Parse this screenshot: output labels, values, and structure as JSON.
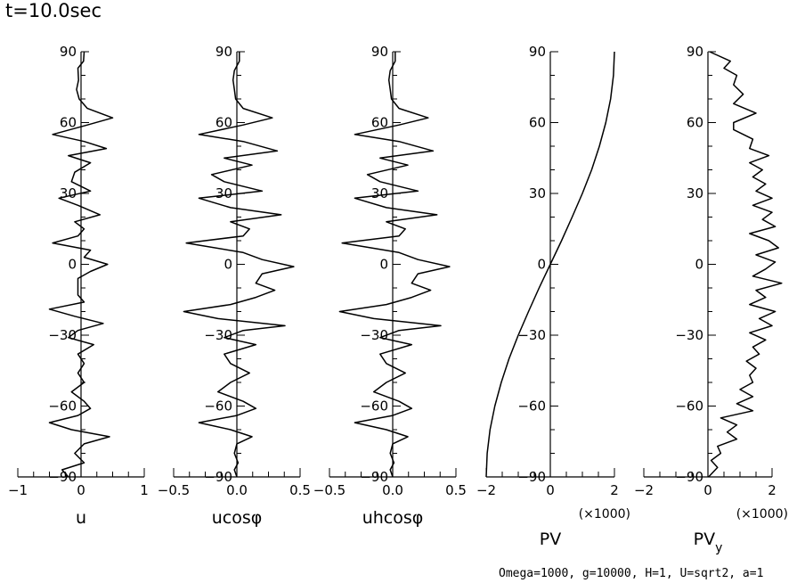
{
  "header": {
    "title": "t=10.0sec"
  },
  "footer": {
    "params": "Omega=1000, g=10000, H=1, U=sqrt2, a=1"
  },
  "chart_data": [
    {
      "type": "line",
      "xlabel": "u",
      "ylim": [
        -90,
        90
      ],
      "xlim": [
        -1,
        1
      ],
      "xticks": [
        -1,
        0,
        1
      ],
      "xtick_labels": [
        "−1",
        "0",
        "1"
      ],
      "yticks": [
        -90,
        -60,
        -30,
        0,
        30,
        60,
        90
      ],
      "ytick_labels": [
        "−90",
        "−60",
        "−30",
        "0",
        "30",
        "60",
        "90"
      ],
      "series": [
        {
          "name": "u",
          "y": [
            90,
            86,
            83,
            78,
            74,
            70,
            66,
            62,
            59,
            55,
            52,
            49,
            46,
            43,
            39,
            35,
            31,
            28,
            25,
            21,
            18,
            15,
            12,
            9,
            6,
            3,
            0,
            -3,
            -6,
            -9,
            -13,
            -16,
            -19,
            -22,
            -25,
            -28,
            -31,
            -34,
            -38,
            -42,
            -46,
            -50,
            -54,
            -58,
            -61,
            -64,
            -67,
            -70,
            -73,
            -76,
            -80,
            -84,
            -87,
            -90
          ],
          "x": [
            0.05,
            0.04,
            -0.05,
            -0.04,
            -0.07,
            -0.03,
            0.1,
            0.5,
            0.1,
            -0.45,
            0.05,
            0.4,
            -0.2,
            0.15,
            -0.1,
            -0.15,
            0.15,
            -0.35,
            -0.05,
            0.3,
            -0.1,
            0.05,
            -0.05,
            -0.45,
            0.15,
            0.05,
            0.42,
            0.15,
            -0.05,
            -0.05,
            -0.05,
            0.05,
            -0.5,
            -0.1,
            0.35,
            -0.05,
            -0.2,
            0.2,
            -0.05,
            0.05,
            -0.05,
            0.05,
            -0.15,
            0.05,
            0.15,
            -0.05,
            -0.5,
            -0.15,
            0.45,
            0.05,
            -0.1,
            0.05,
            -0.3,
            -0.2
          ]
        }
      ]
    },
    {
      "type": "line",
      "xlabel": "ucosφ",
      "ylim": [
        -90,
        90
      ],
      "xlim": [
        -0.5,
        0.5
      ],
      "xticks": [
        -0.5,
        0.0,
        0.5
      ],
      "xtick_labels": [
        "−0.5",
        "0.0",
        "0.5"
      ],
      "yticks": [
        -90,
        -60,
        -30,
        0,
        30,
        60,
        90
      ],
      "ytick_labels": [
        "−90",
        "−60",
        "−30",
        "0",
        "30",
        "60",
        "90"
      ],
      "series": [
        {
          "name": "ucosφ",
          "y": [
            90,
            86,
            82,
            78,
            74,
            70,
            66,
            62,
            59,
            55,
            52,
            48,
            45,
            42,
            38,
            35,
            31,
            28,
            24,
            21,
            18,
            15,
            12,
            9,
            5,
            2,
            -1,
            -4,
            -8,
            -11,
            -14,
            -17,
            -20,
            -23,
            -26,
            -28,
            -31,
            -34,
            -38,
            -42,
            -46,
            -50,
            -54,
            -58,
            -61,
            -64,
            -67,
            -70,
            -73,
            -76,
            -80,
            -84,
            -87,
            -90
          ],
          "x": [
            0.02,
            0.02,
            -0.02,
            -0.03,
            -0.02,
            -0.01,
            0.05,
            0.28,
            0.05,
            -0.3,
            0.05,
            0.32,
            -0.1,
            0.12,
            -0.2,
            -0.1,
            0.2,
            -0.3,
            -0.05,
            0.35,
            -0.05,
            0.1,
            0.05,
            -0.4,
            0.05,
            0.2,
            0.45,
            0.2,
            0.15,
            0.3,
            0.15,
            -0.05,
            -0.42,
            -0.15,
            0.38,
            0.05,
            -0.1,
            0.15,
            -0.1,
            -0.05,
            0.1,
            -0.05,
            -0.15,
            0.05,
            0.15,
            0.0,
            -0.3,
            -0.05,
            0.12,
            0.0,
            -0.02,
            0.01,
            -0.02,
            0.0
          ]
        }
      ]
    },
    {
      "type": "line",
      "xlabel": "uhcosφ",
      "ylim": [
        -90,
        90
      ],
      "xlim": [
        -0.5,
        0.5
      ],
      "xticks": [
        -0.5,
        0.0,
        0.5
      ],
      "xtick_labels": [
        "−0.5",
        "0.0",
        "0.5"
      ],
      "yticks": [
        -90,
        -60,
        -30,
        0,
        30,
        60,
        90
      ],
      "ytick_labels": [
        "−90",
        "−60",
        "−30",
        "0",
        "30",
        "60",
        "90"
      ],
      "series": [
        {
          "name": "uhcosφ",
          "y": [
            90,
            86,
            82,
            78,
            74,
            70,
            66,
            62,
            59,
            55,
            52,
            48,
            45,
            42,
            38,
            35,
            31,
            28,
            24,
            21,
            18,
            15,
            12,
            9,
            5,
            2,
            -1,
            -4,
            -8,
            -11,
            -14,
            -17,
            -20,
            -23,
            -26,
            -28,
            -31,
            -34,
            -38,
            -42,
            -46,
            -50,
            -54,
            -58,
            -61,
            -64,
            -67,
            -70,
            -73,
            -76,
            -80,
            -84,
            -87,
            -90
          ],
          "x": [
            0.02,
            0.02,
            -0.02,
            -0.03,
            -0.02,
            -0.01,
            0.05,
            0.28,
            0.05,
            -0.3,
            0.05,
            0.32,
            -0.1,
            0.12,
            -0.2,
            -0.1,
            0.2,
            -0.3,
            -0.05,
            0.35,
            -0.05,
            0.1,
            0.05,
            -0.4,
            0.05,
            0.2,
            0.45,
            0.2,
            0.15,
            0.3,
            0.15,
            -0.05,
            -0.42,
            -0.15,
            0.38,
            0.05,
            -0.1,
            0.15,
            -0.1,
            -0.05,
            0.1,
            -0.05,
            -0.15,
            0.05,
            0.15,
            0.0,
            -0.3,
            -0.05,
            0.12,
            0.0,
            -0.02,
            0.01,
            -0.02,
            0.0
          ]
        }
      ]
    },
    {
      "type": "line",
      "xlabel": "PV",
      "xscale_label": "(×1000)",
      "ylim": [
        -90,
        90
      ],
      "xlim": [
        -2,
        2
      ],
      "xticks": [
        -2,
        0,
        2
      ],
      "xtick_labels": [
        "−2",
        "0",
        "2"
      ],
      "yticks": [
        -90,
        -60,
        -30,
        0,
        30,
        60,
        90
      ],
      "ytick_labels": [
        "−90",
        "−60",
        "−30",
        "0",
        "30",
        "60",
        "90"
      ],
      "series": [
        {
          "name": "PV",
          "y": [
            -90,
            -80,
            -70,
            -60,
            -50,
            -40,
            -30,
            -20,
            -10,
            0,
            10,
            20,
            30,
            40,
            50,
            60,
            70,
            80,
            90
          ],
          "x": [
            -2.0,
            -1.97,
            -1.88,
            -1.73,
            -1.53,
            -1.29,
            -1.0,
            -0.68,
            -0.35,
            0.0,
            0.35,
            0.68,
            1.0,
            1.29,
            1.53,
            1.73,
            1.88,
            1.97,
            2.0
          ]
        }
      ]
    },
    {
      "type": "line",
      "xlabel": "PV",
      "xlabel_sub": "y",
      "xscale_label": "(×1000)",
      "ylim": [
        -90,
        90
      ],
      "xlim": [
        -2,
        2
      ],
      "xticks": [
        -2,
        0,
        2
      ],
      "xtick_labels": [
        "−2",
        "0",
        "2"
      ],
      "yticks": [
        -90,
        -60,
        -30,
        0,
        30,
        60,
        90
      ],
      "ytick_labels": [
        "−90",
        "−60",
        "−30",
        "0",
        "30",
        "60",
        "90"
      ],
      "series": [
        {
          "name": "PVy",
          "y": [
            90,
            86,
            83,
            80,
            76,
            72,
            68,
            64,
            60,
            57,
            53,
            49,
            46,
            43,
            40,
            37,
            34,
            31,
            28,
            25,
            22,
            19,
            16,
            13,
            10,
            7,
            4,
            1,
            -2,
            -5,
            -8,
            -11,
            -14,
            -17,
            -20,
            -23,
            -26,
            -29,
            -32,
            -35,
            -38,
            -41,
            -44,
            -47,
            -50,
            -53,
            -56,
            -59,
            -62,
            -65,
            -68,
            -71,
            -74,
            -77,
            -80,
            -83,
            -86,
            -90
          ],
          "x": [
            0.05,
            0.7,
            0.5,
            0.9,
            0.8,
            1.1,
            0.8,
            1.5,
            0.8,
            0.8,
            1.4,
            1.3,
            1.9,
            1.3,
            1.7,
            1.4,
            1.8,
            1.5,
            2.0,
            1.4,
            2.0,
            1.7,
            2.1,
            1.3,
            1.9,
            2.2,
            1.5,
            2.1,
            1.8,
            1.4,
            2.3,
            1.5,
            1.8,
            1.3,
            2.1,
            1.6,
            2.0,
            1.3,
            1.8,
            1.4,
            1.6,
            1.2,
            1.5,
            1.3,
            1.4,
            1.0,
            1.4,
            0.9,
            1.4,
            0.4,
            0.9,
            0.6,
            0.9,
            0.3,
            0.4,
            0.1,
            0.3,
            0.02
          ]
        }
      ]
    }
  ]
}
